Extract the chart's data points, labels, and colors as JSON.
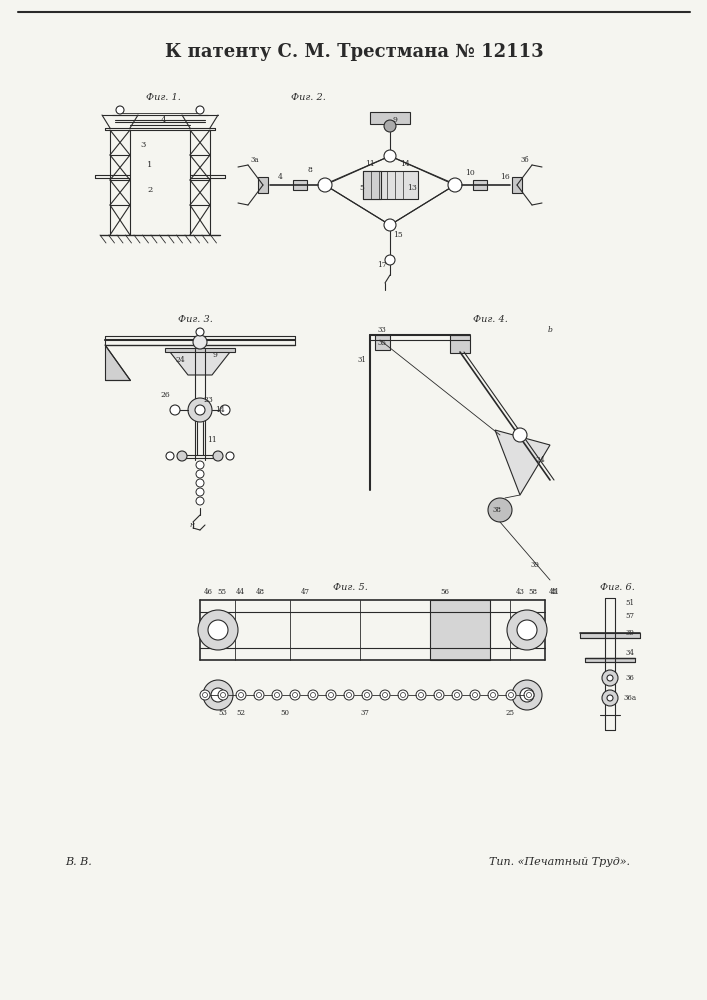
{
  "title": "К патенту С. М. Трестмана № 12113",
  "background_color": "#f5f5f0",
  "line_color": "#2a2a2a",
  "footer_left": "В. В.",
  "footer_right": "Тип. «Печатный Труд»."
}
